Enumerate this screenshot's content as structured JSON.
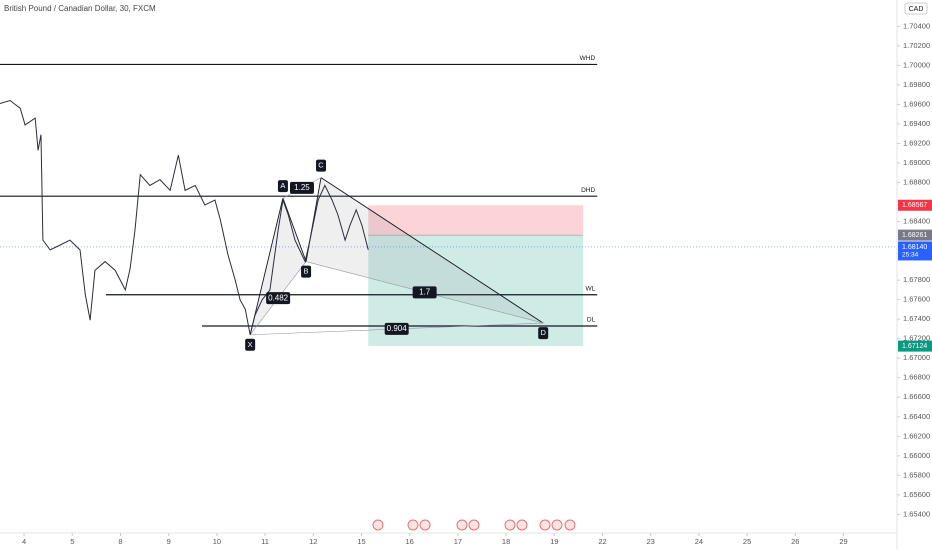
{
  "chart_data": {
    "type": "line",
    "title": "British Pound / Canadian Dollar, 30, FXCM",
    "currency": "CAD",
    "color": "#2a2e39",
    "x": [
      -0.5,
      -0.29,
      -0.08,
      0.02,
      0.23,
      0.29,
      0.35,
      0.39,
      0.54,
      0.75,
      0.95,
      1.16,
      1.27,
      1.37,
      1.47,
      1.68,
      1.89,
      2.1,
      2.2,
      2.3,
      2.41,
      2.61,
      2.82,
      3.03,
      3.2,
      3.34,
      3.55,
      3.75,
      3.96,
      4.07,
      4.23,
      4.38,
      4.48,
      4.59,
      4.69,
      4.79,
      4.94,
      5.1,
      5.27,
      5.37,
      5.48,
      5.62,
      5.83,
      5.93,
      6.1,
      6.24,
      6.39,
      6.51,
      6.66,
      6.76,
      6.89,
      7.01,
      7.14
    ],
    "values": [
      1.6961,
      1.6964,
      1.6956,
      1.6939,
      1.6946,
      1.6913,
      1.6929,
      1.6821,
      1.6811,
      1.6816,
      1.6821,
      1.6811,
      1.6765,
      1.6739,
      1.679,
      1.6799,
      1.679,
      1.677,
      1.6792,
      1.6831,
      1.6888,
      1.6877,
      1.6883,
      1.6872,
      1.6908,
      1.6872,
      1.6877,
      1.6857,
      1.6862,
      1.6842,
      1.6806,
      1.678,
      1.676,
      1.675,
      1.6724,
      1.6744,
      1.676,
      1.677,
      1.6831,
      1.6862,
      1.6847,
      1.6821,
      1.6799,
      1.6821,
      1.6862,
      1.6877,
      1.6862,
      1.6847,
      1.6821,
      1.6836,
      1.6852,
      1.6836,
      1.6811
    ],
    "xlim": [
      -0.5,
      18.11
    ],
    "xticks": [
      {
        "value": 0,
        "label": "4"
      },
      {
        "value": 1,
        "label": "5"
      },
      {
        "value": 2,
        "label": "8"
      },
      {
        "value": 3,
        "label": "9"
      },
      {
        "value": 4,
        "label": "10"
      },
      {
        "value": 5,
        "label": "11"
      },
      {
        "value": 6,
        "label": "12"
      },
      {
        "value": 7,
        "label": "15"
      },
      {
        "value": 8,
        "label": "16"
      },
      {
        "value": 9,
        "label": "17"
      },
      {
        "value": 10,
        "label": "18"
      },
      {
        "value": 11,
        "label": "19"
      },
      {
        "value": 12,
        "label": "22"
      },
      {
        "value": 13,
        "label": "23"
      },
      {
        "value": 14,
        "label": "24"
      },
      {
        "value": 15,
        "label": "25"
      },
      {
        "value": 16,
        "label": "26"
      },
      {
        "value": 17,
        "label": "29"
      }
    ],
    "ylim": [
      1.6524,
      1.7067
    ],
    "yticks": [
      {
        "value": 1.704,
        "label": "1.70400"
      },
      {
        "value": 1.702,
        "label": "1.70200"
      },
      {
        "value": 1.7,
        "label": "1.70000"
      },
      {
        "value": 1.698,
        "label": "1.69800"
      },
      {
        "value": 1.696,
        "label": "1.69600"
      },
      {
        "value": 1.694,
        "label": "1.69400"
      },
      {
        "value": 1.692,
        "label": "1.69200"
      },
      {
        "value": 1.69,
        "label": "1.69000"
      },
      {
        "value": 1.688,
        "label": "1.68800"
      },
      {
        "value": 1.684,
        "label": "1.68400"
      },
      {
        "value": 1.678,
        "label": "1.67800"
      },
      {
        "value": 1.676,
        "label": "1.67600"
      },
      {
        "value": 1.674,
        "label": "1.67400"
      },
      {
        "value": 1.672,
        "label": "1.67200"
      },
      {
        "value": 1.67,
        "label": "1.67000"
      },
      {
        "value": 1.668,
        "label": "1.66800"
      },
      {
        "value": 1.666,
        "label": "1.66600"
      },
      {
        "value": 1.664,
        "label": "1.66400"
      },
      {
        "value": 1.662,
        "label": "1.66200"
      },
      {
        "value": 1.66,
        "label": "1.66000"
      },
      {
        "value": 1.658,
        "label": "1.65800"
      },
      {
        "value": 1.656,
        "label": "1.65600"
      },
      {
        "value": 1.654,
        "label": "1.65400"
      }
    ],
    "levels": [
      {
        "label": "WHD",
        "value": 1.7001,
        "x": [
          -0.5,
          11.89
        ]
      },
      {
        "label": "DHD",
        "value": 1.6866,
        "x": [
          -0.5,
          11.89
        ]
      },
      {
        "label": "WL",
        "value": 1.6765,
        "x": [
          1.7,
          11.89
        ]
      },
      {
        "label": "DL",
        "value": 1.6733,
        "x": [
          3.69,
          11.89
        ]
      }
    ],
    "pattern": {
      "points": [
        {
          "label": "X",
          "x": 4.69,
          "value": 1.6724
        },
        {
          "label": "A",
          "x": 5.37,
          "value": 1.6864
        },
        {
          "label": "B",
          "x": 5.85,
          "value": 1.6799
        },
        {
          "label": "C",
          "x": 6.16,
          "value": 1.6885
        },
        {
          "label": "D",
          "x": 10.77,
          "value": 1.6736
        }
      ],
      "ratios": [
        "0.482",
        "1.25",
        "1.7",
        "0.904"
      ]
    },
    "position": {
      "stop": 1.68567,
      "entry": 1.68261,
      "target": 1.67124,
      "x": [
        7.14,
        11.6
      ]
    },
    "last_price": {
      "value": 1.6814,
      "label": "1.68140",
      "countdown": "25:34"
    }
  }
}
